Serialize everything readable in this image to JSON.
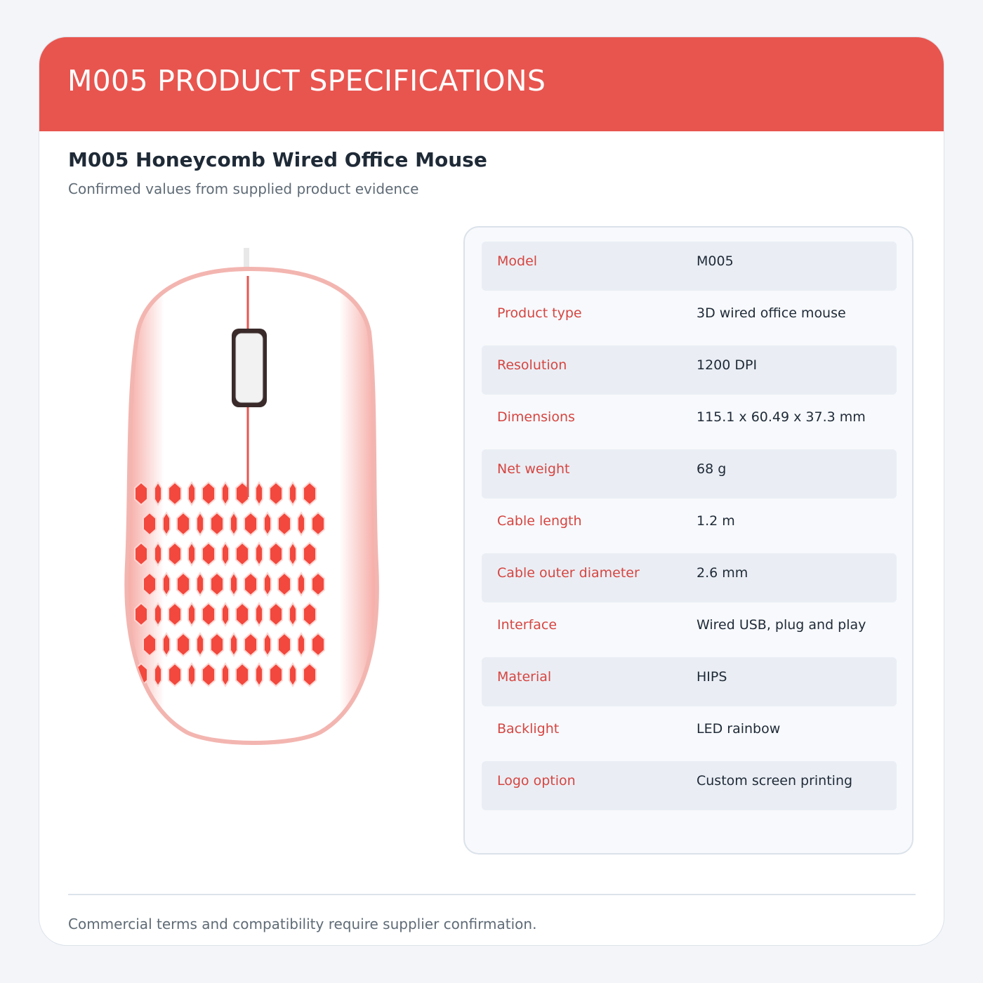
{
  "header": {
    "title": "M005 PRODUCT SPECIFICATIONS"
  },
  "product": {
    "name": "M005 Honeycomb Wired Office Mouse",
    "subtitle": "Confirmed values from supplied product evidence"
  },
  "specs": {
    "rows": [
      {
        "label": "Model",
        "value": "M005"
      },
      {
        "label": "Product type",
        "value": "3D wired office mouse"
      },
      {
        "label": "Resolution",
        "value": "1200 DPI"
      },
      {
        "label": "Dimensions",
        "value": "115.1 x 60.49 x 37.3 mm"
      },
      {
        "label": "Net weight",
        "value": "68 g"
      },
      {
        "label": "Cable length",
        "value": "1.2 m"
      },
      {
        "label": "Cable outer diameter",
        "value": "2.6 mm"
      },
      {
        "label": "Interface",
        "value": "Wired USB, plug and play"
      },
      {
        "label": "Material",
        "value": "HIPS"
      },
      {
        "label": "Backlight",
        "value": "LED rainbow"
      },
      {
        "label": "Logo option",
        "value": "Custom screen printing"
      }
    ]
  },
  "footer": {
    "note": "Commercial terms and compatibility require supplier confirmation."
  }
}
